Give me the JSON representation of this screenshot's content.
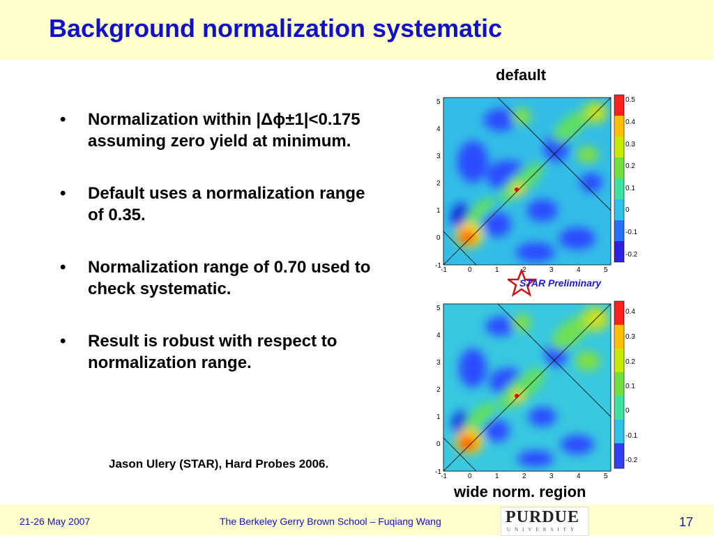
{
  "slide": {
    "title": "Background normalization systematic",
    "bullets": [
      "Normalization within |Δϕ±1|<0.175 assuming zero yield at minimum.",
      "Default uses a normalization range of 0.35.",
      "Normalization range of 0.70 used to check systematic.",
      "Result is robust with respect to normalization range."
    ],
    "credit": "Jason Ulery (STAR), Hard Probes 2006.",
    "bullet_char": "•"
  },
  "plots": {
    "top_label": "default",
    "bottom_label": "wide norm. region",
    "badge_text": "STAR Preliminary",
    "axis_ticks": [
      "-1",
      "0",
      "1",
      "2",
      "3",
      "4",
      "5"
    ],
    "top_colorbar_ticks": [
      "0.5",
      "0.4",
      "0.3",
      "0.2",
      "0.1",
      "0",
      "-0.1",
      "-0.2"
    ],
    "bottom_colorbar_ticks": [
      "0.4",
      "0.3",
      "0.2",
      "0.1",
      "0",
      "-0.1",
      "-0.2"
    ]
  },
  "footer": {
    "date": "21-26 May 2007",
    "center": "The Berkeley Gerry Brown School – Fuqiang Wang",
    "logo_main": "PURDUE",
    "logo_sub": "UNIVERSITY",
    "page": "17"
  }
}
